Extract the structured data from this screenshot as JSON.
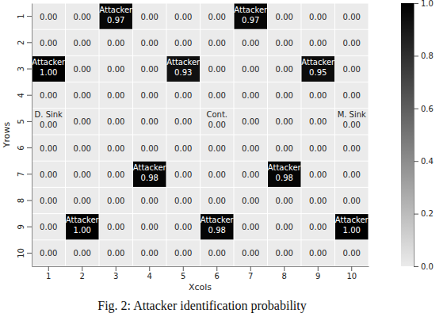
{
  "chart_data": {
    "type": "heatmap",
    "x_label": "Xcols",
    "y_label": "Yrows",
    "caption": "Fig. 2: Attacker identification probability",
    "x": [
      1,
      2,
      3,
      4,
      5,
      6,
      7,
      8,
      9,
      10
    ],
    "y": [
      1,
      2,
      3,
      4,
      5,
      6,
      7,
      8,
      9,
      10
    ],
    "values": [
      [
        0,
        0,
        0.97,
        0,
        0,
        0,
        0.97,
        0,
        0,
        0
      ],
      [
        0,
        0,
        0,
        0,
        0,
        0,
        0,
        0,
        0,
        0
      ],
      [
        1.0,
        0,
        0,
        0,
        0.93,
        0,
        0,
        0,
        0.95,
        0
      ],
      [
        0,
        0,
        0,
        0,
        0,
        0,
        0,
        0,
        0,
        0
      ],
      [
        0,
        0,
        0,
        0,
        0,
        0,
        0,
        0,
        0,
        0
      ],
      [
        0,
        0,
        0,
        0,
        0,
        0,
        0,
        0,
        0,
        0
      ],
      [
        0,
        0,
        0,
        0.98,
        0,
        0,
        0,
        0.98,
        0,
        0
      ],
      [
        0,
        0,
        0,
        0,
        0,
        0,
        0,
        0,
        0,
        0
      ],
      [
        0,
        1.0,
        0,
        0,
        0,
        0.98,
        0,
        0,
        0,
        1.0
      ],
      [
        0,
        0,
        0,
        0,
        0,
        0,
        0,
        0,
        0,
        0
      ]
    ],
    "value_labels": [
      [
        "0.00",
        "0.00",
        "0.97",
        "0.00",
        "0.00",
        "0.00",
        "0.97",
        "0.00",
        "0.00",
        "0.00"
      ],
      [
        "0.00",
        "0.00",
        "0.00",
        "0.00",
        "0.00",
        "0.00",
        "0.00",
        "0.00",
        "0.00",
        "0.00"
      ],
      [
        "1.00",
        "0.00",
        "0.00",
        "0.00",
        "0.93",
        "0.00",
        "0.00",
        "0.00",
        "0.95",
        "0.00"
      ],
      [
        "0.00",
        "0.00",
        "0.00",
        "0.00",
        "0.00",
        "0.00",
        "0.00",
        "0.00",
        "0.00",
        "0.00"
      ],
      [
        "0.00",
        "0.00",
        "0.00",
        "0.00",
        "0.00",
        "0.00",
        "0.00",
        "0.00",
        "0.00",
        "0.00"
      ],
      [
        "0.00",
        "0.00",
        "0.00",
        "0.00",
        "0.00",
        "0.00",
        "0.00",
        "0.00",
        "0.00",
        "0.00"
      ],
      [
        "0.00",
        "0.00",
        "0.00",
        "0.98",
        "0.00",
        "0.00",
        "0.00",
        "0.98",
        "0.00",
        "0.00"
      ],
      [
        "0.00",
        "0.00",
        "0.00",
        "0.00",
        "0.00",
        "0.00",
        "0.00",
        "0.00",
        "0.00",
        "0.00"
      ],
      [
        "0.00",
        "1.00",
        "0.00",
        "0.00",
        "0.00",
        "0.98",
        "0.00",
        "0.00",
        "0.00",
        "1.00"
      ],
      [
        "0.00",
        "0.00",
        "0.00",
        "0.00",
        "0.00",
        "0.00",
        "0.00",
        "0.00",
        "0.00",
        "0.00"
      ]
    ],
    "annotations": [
      {
        "text": "Attacker",
        "x": 3,
        "y": 1
      },
      {
        "text": "Attacker",
        "x": 7,
        "y": 1
      },
      {
        "text": "Attacker",
        "x": 1,
        "y": 3
      },
      {
        "text": "Attacker",
        "x": 5,
        "y": 3
      },
      {
        "text": "Attacker",
        "x": 9,
        "y": 3
      },
      {
        "text": "D. Sink",
        "x": 1,
        "y": 5
      },
      {
        "text": "Cont.",
        "x": 6,
        "y": 5
      },
      {
        "text": "M. Sink",
        "x": 10,
        "y": 5
      },
      {
        "text": "Attacker",
        "x": 4,
        "y": 7
      },
      {
        "text": "Attacker",
        "x": 8,
        "y": 7
      },
      {
        "text": "Attacker",
        "x": 2,
        "y": 9
      },
      {
        "text": "Attacker",
        "x": 6,
        "y": 9
      },
      {
        "text": "Attacker",
        "x": 10,
        "y": 9
      }
    ],
    "colorbar": {
      "range": [
        0,
        1
      ],
      "ticks": [
        {
          "value": 0,
          "label": "0.0"
        },
        0.2,
        0.4,
        0.6,
        0.8,
        {
          "value": 1,
          "label": "1.0"
        }
      ]
    }
  }
}
